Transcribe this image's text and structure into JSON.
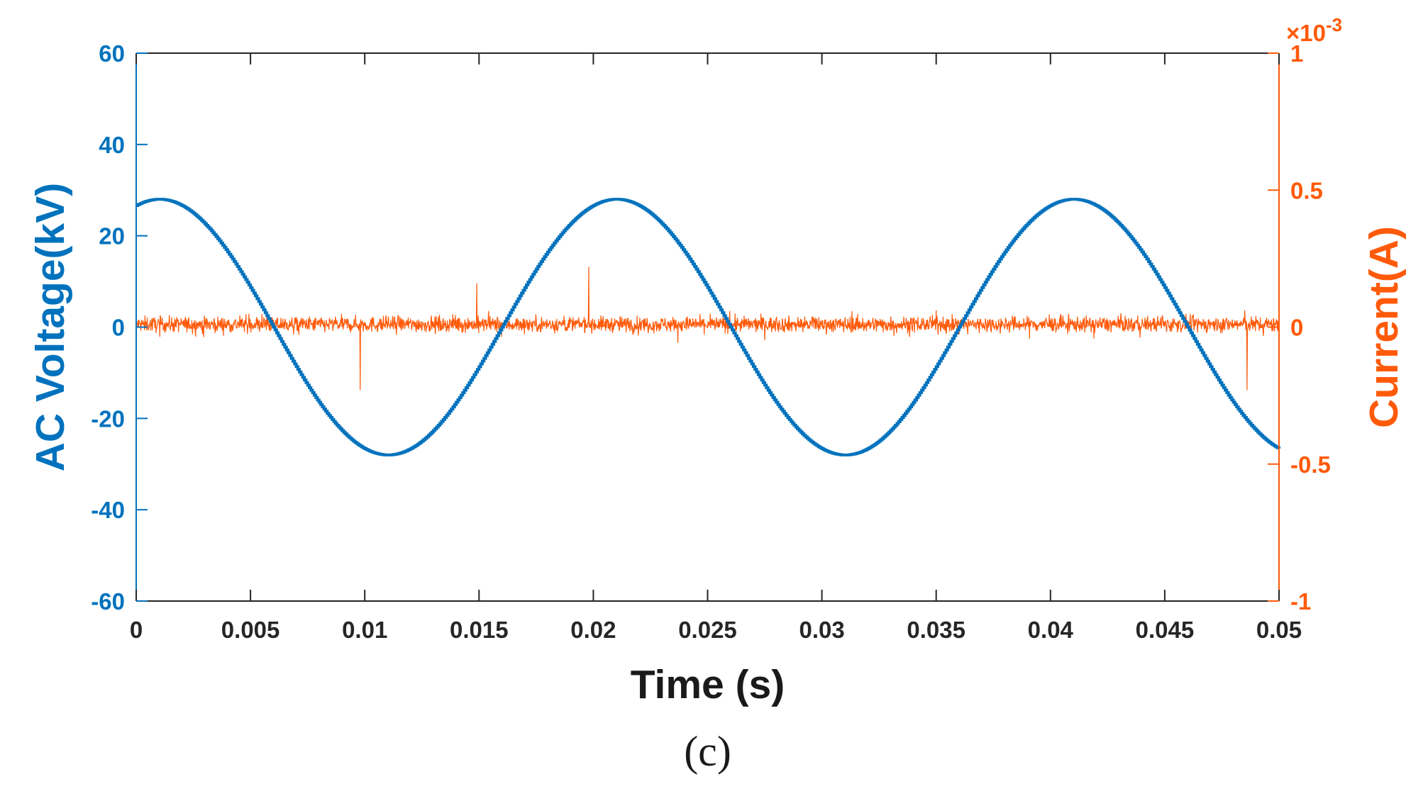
{
  "chart_data": {
    "type": "line",
    "panel_label": "(c)",
    "xlabel": "Time (s)",
    "xlim": [
      0,
      0.05
    ],
    "xticks": [
      0,
      0.005,
      0.01,
      0.015,
      0.02,
      0.025,
      0.03,
      0.035,
      0.04,
      0.045,
      0.05
    ],
    "xtick_labels": [
      "0",
      "0.005",
      "0.01",
      "0.015",
      "0.02",
      "0.025",
      "0.03",
      "0.035",
      "0.04",
      "0.045",
      "0.05"
    ],
    "grid": false,
    "y_left": {
      "label": "AC Voltage(kV)",
      "ylim": [
        -60,
        60
      ],
      "ticks": [
        -60,
        -40,
        -20,
        0,
        20,
        40,
        60
      ],
      "tick_labels": [
        "-60",
        "-40",
        "-20",
        "0",
        "20",
        "40",
        "60"
      ],
      "color": "#0072bd"
    },
    "y_right": {
      "label": "Current(A)",
      "ylim": [
        -1,
        1
      ],
      "ticks": [
        -1,
        -0.5,
        0,
        0.5,
        1
      ],
      "tick_labels": [
        "-1",
        "-0.5",
        "0",
        "0.5",
        "1"
      ],
      "exponent_label": "×10",
      "exponent_power": "-3",
      "color": "#ff5a0a"
    },
    "series": [
      {
        "name": "AC Voltage",
        "axis": "left",
        "color": "#0072bd",
        "kind": "sine",
        "amplitude_kV": 28,
        "frequency_Hz": 50,
        "peak_times_s": [
          0.001,
          0.021,
          0.041
        ],
        "trough_times_s": [
          0.011,
          0.031
        ],
        "start_value_kV": 27,
        "end_value_kV": -26
      },
      {
        "name": "Current",
        "axis": "right",
        "color": "#ff5a0a",
        "kind": "noise",
        "mean_x1e-3": 0.01,
        "band_x1e-3": [
          -0.05,
          0.08
        ],
        "spikes": [
          {
            "t": 0.0098,
            "v_x1e-3": -0.23
          },
          {
            "t": 0.0149,
            "v_x1e-3": 0.16
          },
          {
            "t": 0.0198,
            "v_x1e-3": 0.22
          },
          {
            "t": 0.0486,
            "v_x1e-3": -0.23
          }
        ]
      }
    ]
  }
}
